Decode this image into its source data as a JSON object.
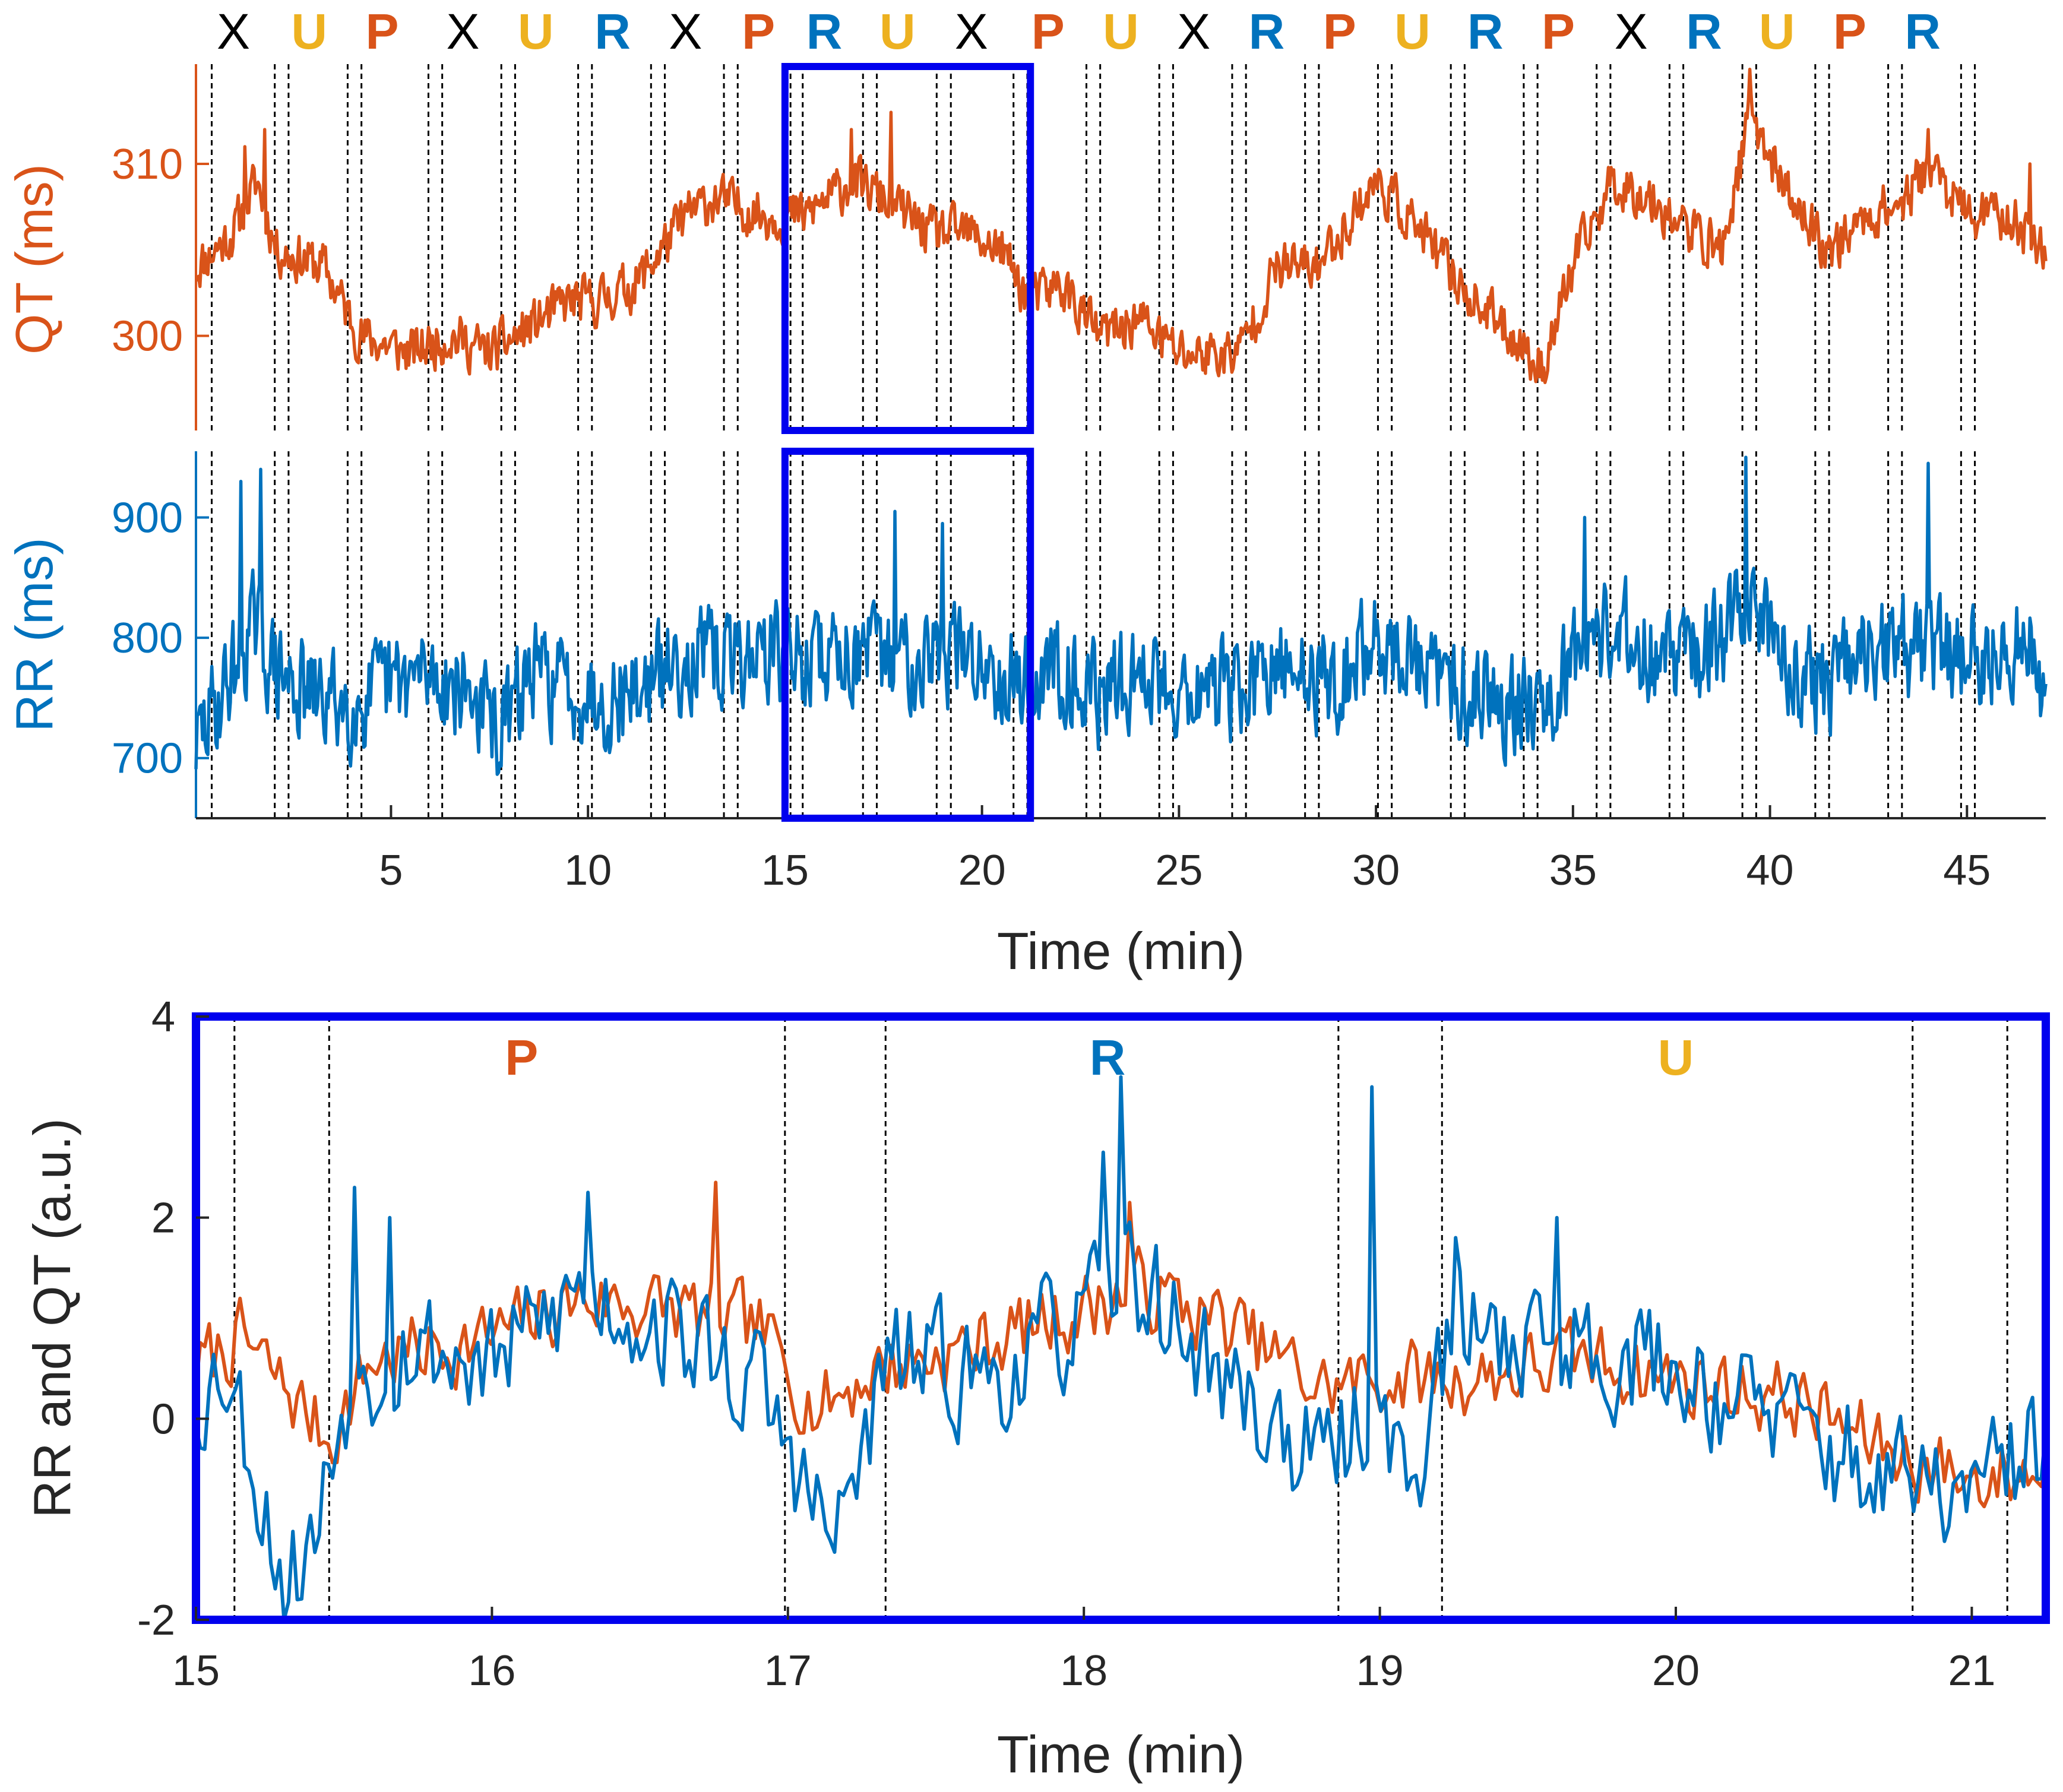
{
  "colors": {
    "qt": "#D95319",
    "rr": "#0072BD",
    "u": "#EDB120",
    "x": "#000000",
    "highlight": "#0000EE",
    "axis": "#262626"
  },
  "chart_data": [
    {
      "type": "line",
      "panel": "top",
      "sequence_labels": [
        "X",
        "U",
        "P",
        "X",
        "U",
        "R",
        "X",
        "P",
        "R",
        "U",
        "X",
        "P",
        "U",
        "X",
        "R",
        "P",
        "U",
        "R",
        "P",
        "X",
        "R",
        "U",
        "P",
        "R"
      ],
      "boundaries_min": [
        0.45,
        2.05,
        2.4,
        3.9,
        4.25,
        5.95,
        6.3,
        7.8,
        8.15,
        9.75,
        10.1,
        11.6,
        11.95,
        13.45,
        13.8,
        15.14,
        15.45,
        16.98,
        17.33,
        18.85,
        19.21,
        20.8,
        21.15,
        22.65,
        23.0,
        24.5,
        24.85,
        26.35,
        26.7,
        28.2,
        28.55,
        30.05,
        30.4,
        31.9,
        32.25,
        33.75,
        34.1,
        35.6,
        35.95,
        37.45,
        37.8,
        39.3,
        39.65,
        41.15,
        41.5,
        43.0,
        43.35,
        44.85,
        45.2
      ],
      "xlim": [
        0.05,
        47.0
      ],
      "xticks": [
        5,
        10,
        15,
        20,
        25,
        30,
        35,
        40,
        45
      ],
      "xlabel": "Time (min)",
      "highlight_window_min": [
        15.0,
        21.23
      ],
      "qt": {
        "ylabel": "QT (ms)",
        "ylim": [
          294.5,
          315.8
        ],
        "yticks": [
          300,
          310
        ],
        "trend_points": [
          [
            0.05,
            304
          ],
          [
            1.0,
            306
          ],
          [
            1.6,
            309
          ],
          [
            2.1,
            305
          ],
          [
            3.3,
            304
          ],
          [
            4.2,
            300
          ],
          [
            5.5,
            299
          ],
          [
            6.5,
            300
          ],
          [
            7.5,
            299
          ],
          [
            8.2,
            300
          ],
          [
            9.5,
            302
          ],
          [
            10.2,
            302
          ],
          [
            11.2,
            303
          ],
          [
            12.5,
            307
          ],
          [
            13.2,
            308
          ],
          [
            14.5,
            307
          ],
          [
            15.5,
            307
          ],
          [
            16.7,
            309
          ],
          [
            17.5,
            308
          ],
          [
            18.7,
            306
          ],
          [
            19.6,
            306
          ],
          [
            20.5,
            305
          ],
          [
            21.2,
            302
          ],
          [
            22.0,
            303
          ],
          [
            23.0,
            300
          ],
          [
            24.0,
            301
          ],
          [
            25.0,
            299
          ],
          [
            26.0,
            299
          ],
          [
            26.5,
            299
          ],
          [
            27.5,
            304
          ],
          [
            28.5,
            304
          ],
          [
            30.0,
            309
          ],
          [
            30.8,
            307
          ],
          [
            31.8,
            304
          ],
          [
            32.5,
            302
          ],
          [
            33.5,
            300
          ],
          [
            34.2,
            298
          ],
          [
            35.0,
            304
          ],
          [
            36.0,
            309
          ],
          [
            37.0,
            308
          ],
          [
            38.0,
            306
          ],
          [
            38.8,
            305
          ],
          [
            39.5,
            313
          ],
          [
            40.5,
            308
          ],
          [
            41.5,
            305
          ],
          [
            42.5,
            307
          ],
          [
            43.5,
            308
          ],
          [
            44.0,
            310
          ],
          [
            45.0,
            307
          ],
          [
            46.0,
            307
          ],
          [
            47.0,
            305
          ]
        ],
        "noise_amplitude_ms": 1.3,
        "spikes": [
          [
            1.3,
            311
          ],
          [
            1.8,
            312
          ],
          [
            16.7,
            312
          ],
          [
            17.7,
            313
          ],
          [
            39.5,
            315.5
          ],
          [
            44.0,
            312
          ],
          [
            46.6,
            310
          ]
        ]
      },
      "rr": {
        "ylabel": "RR (ms)",
        "ylim": [
          650,
          955
        ],
        "yticks": [
          700,
          800,
          900
        ],
        "trend_points": [
          [
            0.05,
            710
          ],
          [
            0.8,
            760
          ],
          [
            1.5,
            810
          ],
          [
            2.1,
            770
          ],
          [
            3.0,
            750
          ],
          [
            4.2,
            745
          ],
          [
            5.0,
            760
          ],
          [
            6.0,
            770
          ],
          [
            7.0,
            755
          ],
          [
            7.8,
            720
          ],
          [
            8.5,
            770
          ],
          [
            9.5,
            760
          ],
          [
            10.5,
            750
          ],
          [
            11.5,
            760
          ],
          [
            12.5,
            785
          ],
          [
            13.5,
            780
          ],
          [
            14.5,
            790
          ],
          [
            15.5,
            780
          ],
          [
            16.5,
            790
          ],
          [
            17.5,
            780
          ],
          [
            18.5,
            790
          ],
          [
            19.5,
            785
          ],
          [
            20.5,
            775
          ],
          [
            21.2,
            760
          ],
          [
            22.0,
            780
          ],
          [
            23.0,
            750
          ],
          [
            24.0,
            770
          ],
          [
            25.0,
            760
          ],
          [
            26.0,
            755
          ],
          [
            27.0,
            760
          ],
          [
            28.0,
            775
          ],
          [
            29.0,
            760
          ],
          [
            30.0,
            800
          ],
          [
            30.8,
            780
          ],
          [
            31.8,
            760
          ],
          [
            32.5,
            760
          ],
          [
            33.5,
            745
          ],
          [
            34.5,
            760
          ],
          [
            35.5,
            810
          ],
          [
            36.5,
            800
          ],
          [
            37.5,
            780
          ],
          [
            38.5,
            790
          ],
          [
            39.5,
            830
          ],
          [
            40.5,
            780
          ],
          [
            41.5,
            760
          ],
          [
            42.5,
            785
          ],
          [
            43.5,
            790
          ],
          [
            44.5,
            790
          ],
          [
            45.5,
            780
          ],
          [
            46.5,
            790
          ],
          [
            47.0,
            760
          ]
        ],
        "noise_amplitude_ms": 38,
        "spikes": [
          [
            1.2,
            930
          ],
          [
            1.7,
            940
          ],
          [
            35.3,
            900
          ],
          [
            39.4,
            950
          ],
          [
            44.0,
            945
          ],
          [
            17.8,
            905
          ],
          [
            19.0,
            895
          ]
        ]
      }
    },
    {
      "type": "line",
      "panel": "bottom",
      "xlim": [
        15,
        21.25
      ],
      "ylim": [
        -2,
        4
      ],
      "xticks": [
        15,
        16,
        17,
        18,
        19,
        20,
        21
      ],
      "yticks": [
        -2,
        0,
        2,
        4
      ],
      "xlabel": "Time (min)",
      "ylabel": "RR and QT (a.u.)",
      "segment_labels": [
        {
          "label": "P",
          "x": 16.1,
          "color_key": "qt"
        },
        {
          "label": "R",
          "x": 18.08,
          "color_key": "rr"
        },
        {
          "label": "U",
          "x": 20.0,
          "color_key": "u"
        }
      ],
      "boundaries_min": [
        15.13,
        15.45,
        16.99,
        17.33,
        18.86,
        19.21,
        20.8,
        21.12
      ],
      "series": [
        {
          "name": "QT",
          "color_key": "qt",
          "trend_points": [
            [
              15.0,
              0.5
            ],
            [
              15.15,
              0.8
            ],
            [
              15.3,
              0.3
            ],
            [
              15.45,
              -0.2
            ],
            [
              15.6,
              0.6
            ],
            [
              16.0,
              0.8
            ],
            [
              16.3,
              1.2
            ],
            [
              16.6,
              1.1
            ],
            [
              16.9,
              0.9
            ],
            [
              17.1,
              0.1
            ],
            [
              17.3,
              0.5
            ],
            [
              17.6,
              0.7
            ],
            [
              18.0,
              1.1
            ],
            [
              18.2,
              1.3
            ],
            [
              18.5,
              0.9
            ],
            [
              18.8,
              0.3
            ],
            [
              19.0,
              0.4
            ],
            [
              19.3,
              0.4
            ],
            [
              19.7,
              0.6
            ],
            [
              20.0,
              0.4
            ],
            [
              20.4,
              0.2
            ],
            [
              20.7,
              -0.3
            ],
            [
              21.0,
              -0.6
            ],
            [
              21.25,
              -0.5
            ]
          ],
          "noise_amplitude": 0.35,
          "spikes": [
            [
              16.76,
              2.35
            ],
            [
              18.15,
              2.15
            ]
          ]
        },
        {
          "name": "RR",
          "color_key": "rr",
          "trend_points": [
            [
              15.0,
              0.2
            ],
            [
              15.1,
              0.6
            ],
            [
              15.2,
              -0.5
            ],
            [
              15.3,
              -1.6
            ],
            [
              15.4,
              -1.2
            ],
            [
              15.5,
              0.2
            ],
            [
              15.7,
              0.8
            ],
            [
              16.0,
              0.5
            ],
            [
              16.3,
              1.3
            ],
            [
              16.6,
              0.9
            ],
            [
              16.9,
              0.3
            ],
            [
              17.05,
              -0.6
            ],
            [
              17.15,
              -1.3
            ],
            [
              17.35,
              0.6
            ],
            [
              17.7,
              0.4
            ],
            [
              18.0,
              1.0
            ],
            [
              18.15,
              1.5
            ],
            [
              18.4,
              0.6
            ],
            [
              18.8,
              -0.5
            ],
            [
              19.0,
              0.2
            ],
            [
              19.1,
              -0.7
            ],
            [
              19.25,
              0.9
            ],
            [
              19.6,
              0.8
            ],
            [
              20.0,
              0.5
            ],
            [
              20.4,
              -0.1
            ],
            [
              20.7,
              -0.6
            ],
            [
              21.0,
              -0.8
            ],
            [
              21.25,
              -0.2
            ]
          ],
          "noise_amplitude": 0.55,
          "spikes": [
            [
              15.54,
              2.3
            ],
            [
              15.65,
              2.0
            ],
            [
              16.32,
              2.25
            ],
            [
              18.07,
              2.65
            ],
            [
              18.13,
              3.4
            ],
            [
              18.97,
              3.3
            ],
            [
              19.25,
              1.8
            ],
            [
              19.6,
              2.0
            ],
            [
              15.3,
              -2.0
            ]
          ]
        }
      ]
    }
  ]
}
